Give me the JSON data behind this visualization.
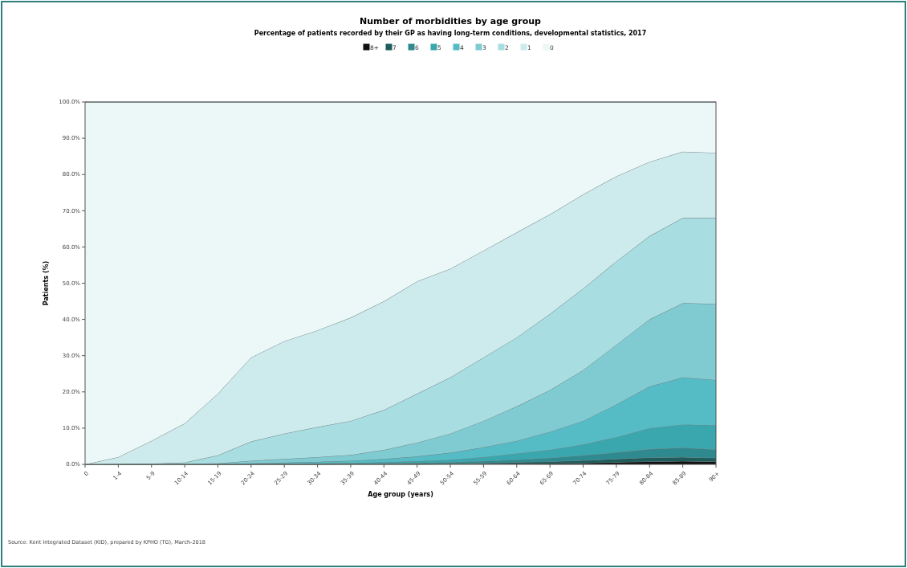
{
  "chart_data": {
    "type": "area",
    "stacked": true,
    "title": "Number of morbidities by age group",
    "subtitle": "Percentage of patients recorded by their GP as having long-term conditions, developmental statistics, 2017",
    "xlabel": "Age group (years)",
    "ylabel": "Patients (%)",
    "legend": "top",
    "grid": false,
    "annotations": [
      "Source: Kent Integrated Dataset (KID), prepared by KPHO (TG), March-2018"
    ],
    "categories": [
      "0",
      "1-4",
      "5-9",
      "10-14",
      "15-19",
      "20-24",
      "25-29",
      "30-34",
      "35-39",
      "40-44",
      "45-49",
      "50-54",
      "55-59",
      "60-64",
      "65-69",
      "70-74",
      "75-79",
      "80-84",
      "85-89",
      "90+"
    ],
    "ylim": [
      0,
      100
    ],
    "yticks": [
      {
        "value": 0,
        "label": "0.0%"
      },
      {
        "value": 10,
        "label": "10.0%"
      },
      {
        "value": 20,
        "label": "20.0%"
      },
      {
        "value": 30,
        "label": "30.0%"
      },
      {
        "value": 40,
        "label": "40.0%"
      },
      {
        "value": 50,
        "label": "50.0%"
      },
      {
        "value": 60,
        "label": "60.0%"
      },
      {
        "value": 70,
        "label": "70.0%"
      },
      {
        "value": 80,
        "label": "80.0%"
      },
      {
        "value": 90,
        "label": "90.0%"
      },
      {
        "value": 100,
        "label": "100.0%"
      }
    ],
    "series": [
      {
        "name": "8+",
        "color": "#111111",
        "values": [
          0,
          0,
          0,
          0,
          0,
          0,
          0,
          0,
          0,
          0,
          0,
          0.1,
          0.1,
          0.2,
          0.3,
          0.4,
          0.6,
          0.8,
          0.9,
          0.8
        ]
      },
      {
        "name": "7",
        "color": "#1f5c5c",
        "values": [
          0,
          0,
          0,
          0,
          0,
          0,
          0,
          0,
          0.1,
          0.1,
          0.2,
          0.2,
          0.3,
          0.4,
          0.5,
          0.7,
          0.9,
          1.1,
          1.1,
          1.0
        ]
      },
      {
        "name": "6",
        "color": "#2e8a8f",
        "values": [
          0,
          0,
          0,
          0,
          0,
          0,
          0.1,
          0.1,
          0.1,
          0.2,
          0.2,
          0.3,
          0.5,
          0.7,
          1.0,
          1.4,
          1.8,
          2.3,
          2.6,
          2.3
        ]
      },
      {
        "name": "5",
        "color": "#3aa6ae",
        "values": [
          0,
          0,
          0,
          0,
          0,
          0.1,
          0.1,
          0.2,
          0.2,
          0.3,
          0.5,
          0.7,
          1.1,
          1.7,
          2.2,
          3.0,
          4.2,
          5.8,
          6.4,
          6.7
        ]
      },
      {
        "name": "4",
        "color": "#55bcc6",
        "values": [
          0,
          0,
          0,
          0,
          0.1,
          0.2,
          0.3,
          0.4,
          0.6,
          0.9,
          1.3,
          1.9,
          2.7,
          3.5,
          5.0,
          6.5,
          9.0,
          11.5,
          13.0,
          12.5
        ]
      },
      {
        "name": "3",
        "color": "#80cbd2",
        "values": [
          0,
          0,
          0,
          0.1,
          0.2,
          0.7,
          1.0,
          1.3,
          1.6,
          2.5,
          3.8,
          5.3,
          7.3,
          9.5,
          11.5,
          14.0,
          16.5,
          18.5,
          20.5,
          21.0
        ]
      },
      {
        "name": "2",
        "color": "#a8dde1",
        "values": [
          0,
          0.1,
          0.2,
          0.4,
          2.2,
          5.3,
          7.0,
          8.3,
          9.4,
          11.0,
          13.5,
          15.5,
          17.5,
          19.0,
          21.0,
          22.5,
          23.0,
          23.0,
          23.5,
          23.7
        ]
      },
      {
        "name": "1",
        "color": "#cdeaed",
        "values": [
          0,
          1.9,
          6.3,
          10.8,
          17.0,
          23.2,
          25.5,
          26.7,
          28.5,
          30.0,
          31.0,
          30.0,
          29.5,
          29.0,
          27.5,
          26.0,
          23.5,
          20.5,
          18.3,
          18.0
        ]
      },
      {
        "name": "0",
        "color": "#ecf7f8",
        "values": [
          100,
          98,
          93.5,
          88.7,
          80.5,
          70.5,
          66,
          63,
          59.5,
          55,
          49.5,
          46,
          41,
          36,
          31,
          25.5,
          20.5,
          16.5,
          13.7,
          14
        ]
      }
    ]
  }
}
